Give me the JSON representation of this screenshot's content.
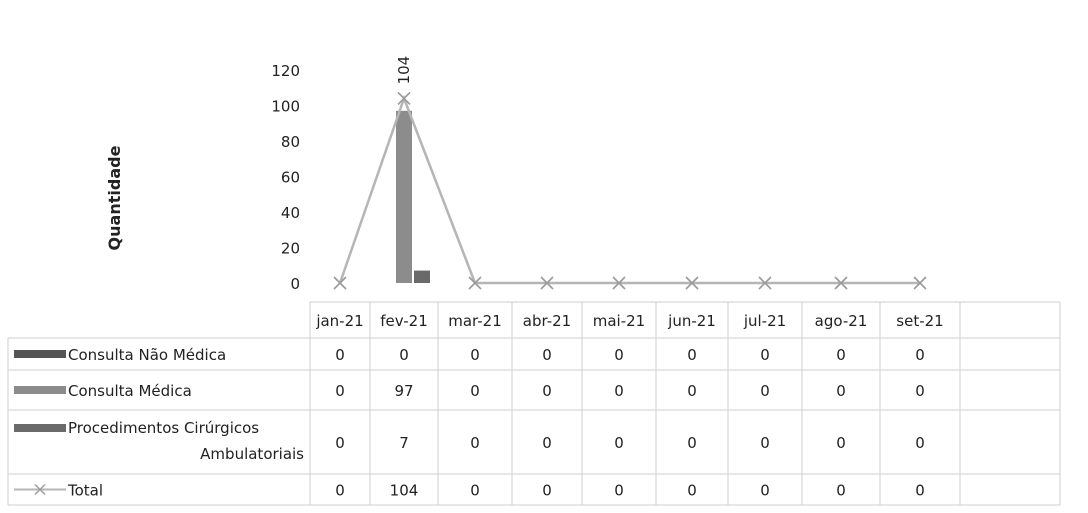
{
  "chart_data": {
    "type": "bar",
    "title": "",
    "xlabel": "",
    "ylabel": "Quantidade",
    "ylim": [
      0,
      120
    ],
    "yticks": [
      0,
      20,
      40,
      60,
      80,
      100,
      120
    ],
    "grid": false,
    "legend": "data-table-below",
    "categories": [
      "jan-21",
      "fev-21",
      "mar-21",
      "abr-21",
      "mai-21",
      "jun-21",
      "jul-21",
      "ago-21",
      "set-21"
    ],
    "series": [
      {
        "name": "Consulta Não Médica",
        "kind": "bar",
        "color": "#555555",
        "values": [
          0,
          0,
          0,
          0,
          0,
          0,
          0,
          0,
          0
        ]
      },
      {
        "name": "Consulta Médica",
        "kind": "bar",
        "color": "#8c8c8c",
        "values": [
          0,
          97,
          0,
          0,
          0,
          0,
          0,
          0,
          0
        ]
      },
      {
        "name": "Procedimentos Cirúrgicos Ambulatoriais",
        "kind": "bar",
        "color": "#6a6a6a",
        "values": [
          0,
          7,
          0,
          0,
          0,
          0,
          0,
          0,
          0
        ]
      },
      {
        "name": "Total",
        "kind": "line",
        "color": "#b5b5b5",
        "values": [
          0,
          104,
          0,
          0,
          0,
          0,
          0,
          0,
          0
        ]
      }
    ],
    "data_labels": [
      {
        "series": "Total",
        "category": "fev-21",
        "text": "104"
      }
    ]
  }
}
